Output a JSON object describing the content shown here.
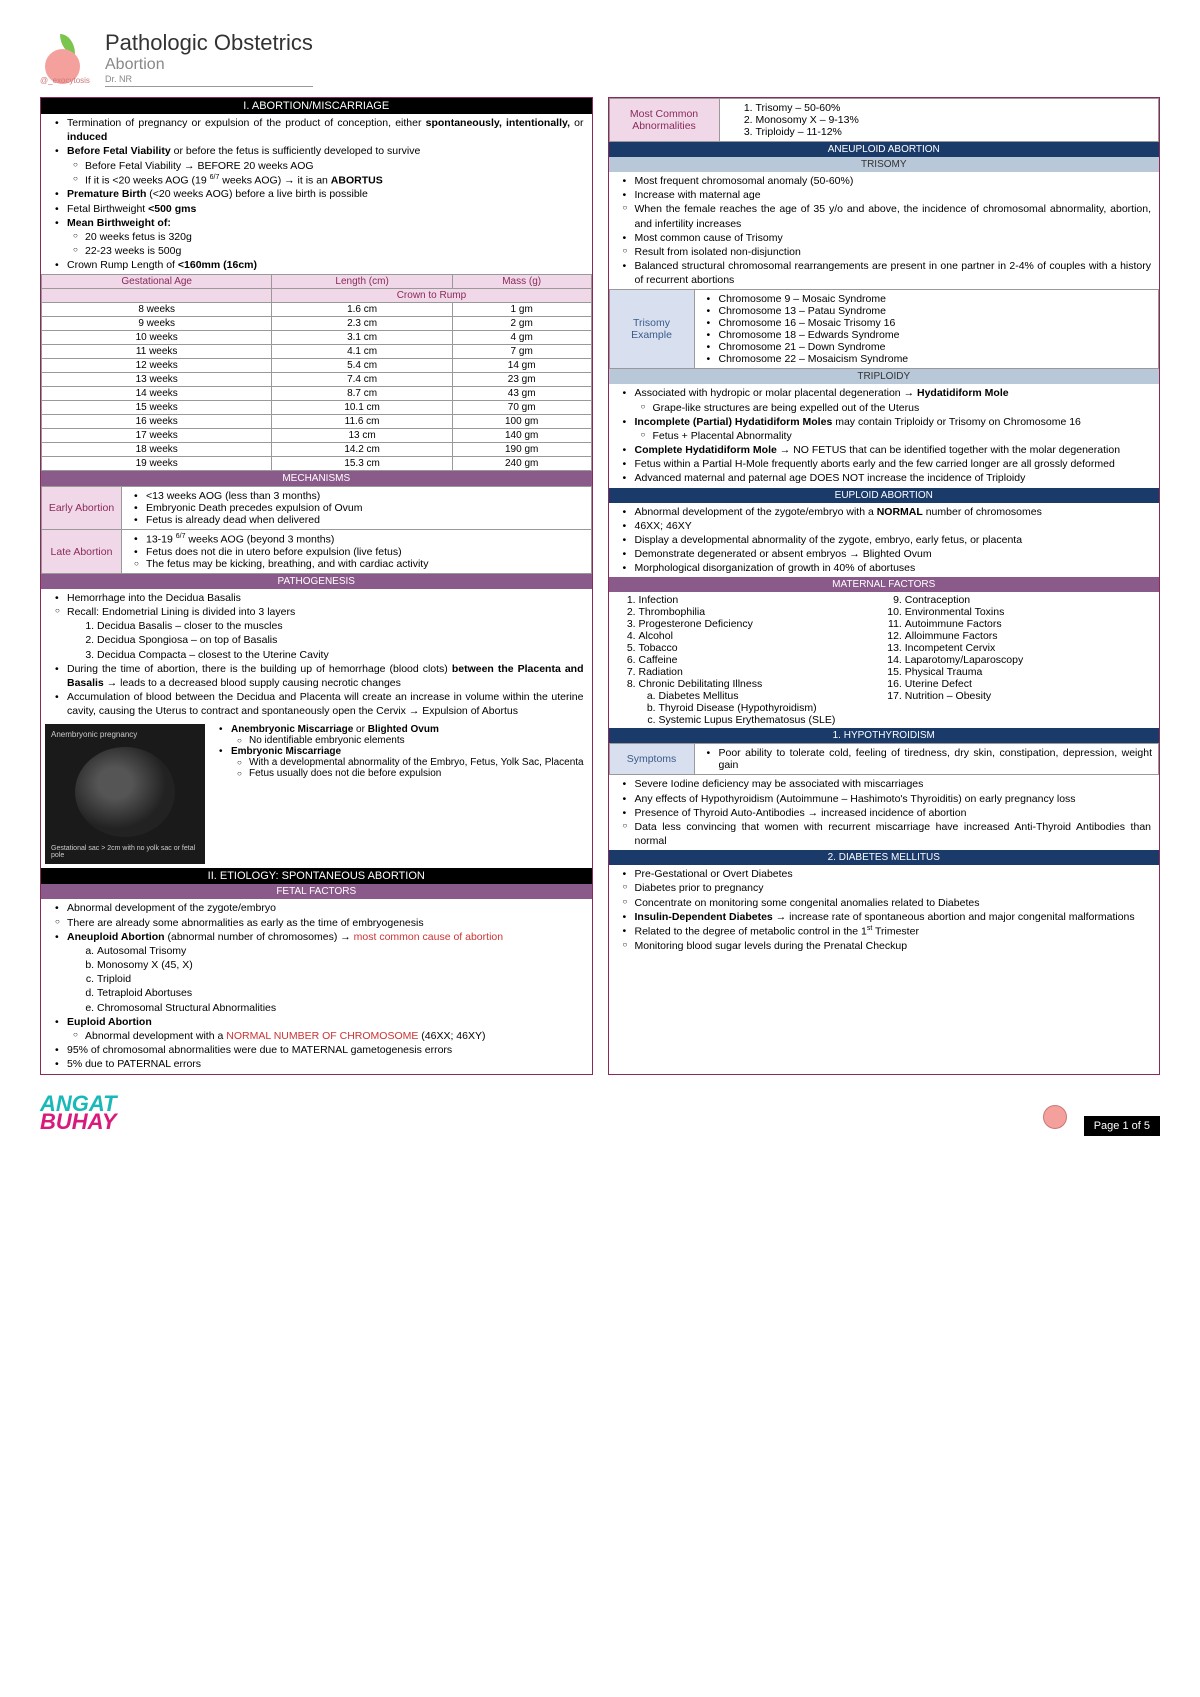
{
  "header": {
    "handle": "@_exocytosis",
    "title": "Pathologic Obstetrics",
    "subtitle": "Abortion",
    "doctor": "Dr. NR"
  },
  "sec1": {
    "title": "I. ABORTION/MISCARRIAGE",
    "b1": "Termination of pregnancy or expulsion of the product of conception, either ",
    "b1b": "spontaneously, intentionally,",
    "b1c": " or ",
    "b1d": "induced",
    "b2a": "Before Fetal Viability",
    "b2b": " or before the fetus is sufficiently developed to survive",
    "b2s1": "Before Fetal Viability → BEFORE 20 weeks AOG",
    "b2s2a": "If it is <20 weeks AOG (19 ",
    "b2s2sup": "6/7",
    "b2s2b": " weeks AOG) → it is an ",
    "b2s2c": "ABORTUS",
    "b3a": "Premature Birth",
    "b3b": " (<20 weeks AOG) before a live birth is possible",
    "b4a": "Fetal Birthweight ",
    "b4b": "<500 gms",
    "b5a": "Mean Birthweight of:",
    "b5s1": "20 weeks fetus is 320g",
    "b5s2": "22-23 weeks is 500g",
    "b6a": "Crown Rump Length of ",
    "b6b": "<160mm (16cm)"
  },
  "crl_table": {
    "h1": "Gestational Age",
    "h2": "Length (cm)",
    "h3": "Mass (g)",
    "sub": "Crown to Rump",
    "rows": [
      [
        "8 weeks",
        "1.6 cm",
        "1 gm"
      ],
      [
        "9 weeks",
        "2.3 cm",
        "2 gm"
      ],
      [
        "10 weeks",
        "3.1 cm",
        "4 gm"
      ],
      [
        "11 weeks",
        "4.1 cm",
        "7 gm"
      ],
      [
        "12 weeks",
        "5.4 cm",
        "14 gm"
      ],
      [
        "13 weeks",
        "7.4 cm",
        "23 gm"
      ],
      [
        "14 weeks",
        "8.7 cm",
        "43 gm"
      ],
      [
        "15 weeks",
        "10.1 cm",
        "70 gm"
      ],
      [
        "16 weeks",
        "11.6 cm",
        "100 gm"
      ],
      [
        "17 weeks",
        "13 cm",
        "140 gm"
      ],
      [
        "18 weeks",
        "14.2 cm",
        "190 gm"
      ],
      [
        "19 weeks",
        "15.3 cm",
        "240 gm"
      ]
    ]
  },
  "mechanisms": {
    "title": "MECHANISMS",
    "early_lbl": "Early Abortion",
    "e1": "<13 weeks AOG (less than 3 months)",
    "e2": "Embryonic Death precedes expulsion of Ovum",
    "e3": "Fetus is already dead when delivered",
    "late_lbl": "Late Abortion",
    "l1a": "13-19 ",
    "l1sup": "6/7",
    "l1b": " weeks AOG (beyond 3 months)",
    "l2": "Fetus does not die in utero before expulsion (live fetus)",
    "l2s": "The fetus may be kicking, breathing, and with cardiac activity"
  },
  "patho": {
    "title": "PATHOGENESIS",
    "p1": "Hemorrhage into the Decidua Basalis",
    "p1s": "Recall: Endometrial Lining is divided into 3 layers",
    "p1s1": "Decidua Basalis – closer to the muscles",
    "p1s2": "Decidua Spongiosa – on top of Basalis",
    "p1s3": "Decidua Compacta – closest to the Uterine Cavity",
    "p2a": "During the time of abortion, there is the building up of hemorrhage (blood clots) ",
    "p2b": "between the Placenta and Basalis",
    "p2c": " → leads to a decreased blood supply causing necrotic changes",
    "p3": "Accumulation of blood between the Decidua and Placenta will create an increase in volume within the uterine cavity, causing the Uterus to contract and spontaneously open the Cervix → Expulsion of Abortus",
    "img_t1": "Anembryonic pregnancy",
    "img_t2": "Gestational sac > 2cm with no yolk sac or fetal pole",
    "an1a": "Anembryonic Miscarriage",
    "an1b": " or ",
    "an1c": "Blighted Ovum",
    "an1s": "No identifiable embryonic elements",
    "an2": "Embryonic Miscarriage",
    "an2s1": "With a developmental abnormality of the Embryo, Fetus, Yolk Sac, Placenta",
    "an2s2": "Fetus usually does not die before expulsion"
  },
  "etio": {
    "title": "II. ETIOLOGY: SPONTANEOUS ABORTION",
    "fetal": "FETAL FACTORS",
    "f1": "Abnormal development of the zygote/embryo",
    "f1s": "There are already some abnormalities as early as the time of embryogenesis",
    "f2a": "Aneuploid Abortion",
    "f2b": " (abnormal number of chromosomes) → ",
    "f2c": "most common cause of abortion",
    "f2l": [
      "Autosomal Trisomy",
      "Monosomy X (45, X)",
      "Triploid",
      "Tetraploid Abortuses",
      "Chromosomal Structural Abnormalities"
    ],
    "f3": "Euploid Abortion",
    "f3sa": "Abnormal development with a ",
    "f3sb": "NORMAL NUMBER OF CHROMOSOME",
    "f3sc": " (46XX; 46XY)",
    "f4": "95% of chromosomal abnormalities were due to MATERNAL gametogenesis errors",
    "f5": "5% due to PATERNAL errors"
  },
  "abn": {
    "lbl": "Most Common Abnormalities",
    "i1": "Trisomy – 50-60%",
    "i2": "Monosomy X – 9-13%",
    "i3": "Triploidy – 11-12%"
  },
  "aneu": {
    "title": "ANEUPLOID ABORTION",
    "tri_title": "TRISOMY",
    "t1": "Most frequent chromosomal anomaly (50-60%)",
    "t2": "Increase with maternal age",
    "t2s": "When the female reaches the age of 35 y/o and above, the incidence of chromosomal abnormality, abortion, and infertility increases",
    "t3": "Most common cause of Trisomy",
    "t3s": "Result from isolated non-disjunction",
    "t4": "Balanced structural chromosomal rearrangements are present in one partner in 2-4% of couples with a history of recurrent abortions",
    "ex_lbl": "Trisomy Example",
    "ex": [
      "Chromosome 9 – Mosaic Syndrome",
      "Chromosome 13 – Patau Syndrome",
      "Chromosome 16 – Mosaic Trisomy 16",
      "Chromosome 18 – Edwards Syndrome",
      "Chromosome 21 – Down Syndrome",
      "Chromosome 22 – Mosaicism Syndrome"
    ],
    "trip_title": "TRIPLOIDY",
    "tp1a": "Associated with hydropic or molar placental degeneration → ",
    "tp1b": "Hydatidiform Mole",
    "tp1s": "Grape-like structures are being expelled out of the Uterus",
    "tp2a": "Incomplete (Partial) Hydatidiform Moles",
    "tp2b": " may contain Triploidy or Trisomy on Chromosome 16",
    "tp2s": "Fetus + Placental Abnormality",
    "tp3a": "Complete Hydatidiform Mole",
    "tp3b": " → NO FETUS that can be identified together with the molar degeneration",
    "tp4": "Fetus within a Partial H-Mole frequently aborts early and the few carried longer are all grossly deformed",
    "tp5": "Advanced maternal and paternal age DOES NOT increase the incidence of Triploidy"
  },
  "eup": {
    "title": "EUPLOID ABORTION",
    "e1a": "Abnormal development of the zygote/embryo with a ",
    "e1b": "NORMAL",
    "e1c": " number of chromosomes",
    "e2": "46XX; 46XY",
    "e3": "Display a developmental abnormality of the zygote, embryo, early fetus, or placenta",
    "e4": "Demonstrate degenerated or absent embryos → Blighted Ovum",
    "e5": "Morphological disorganization of growth in 40% of abortuses"
  },
  "mat": {
    "title": "MATERNAL FACTORS",
    "left": [
      "Infection",
      "Thrombophilia",
      "Progesterone Deficiency",
      "Alcohol",
      "Tobacco",
      "Caffeine",
      "Radiation",
      "Chronic Debilitating Illness"
    ],
    "sub": [
      "Diabetes Mellitus",
      "Thyroid Disease (Hypothyroidism)",
      "Systemic Lupus Erythematosus (SLE)"
    ],
    "right": [
      "Contraception",
      "Environmental Toxins",
      "Autoimmune Factors",
      "Alloimmune Factors",
      "Incompetent Cervix",
      "Laparotomy/Laparoscopy",
      "Physical Trauma",
      "Uterine Defect",
      "Nutrition – Obesity"
    ]
  },
  "hypo": {
    "title": "1. HYPOTHYROIDISM",
    "sym_lbl": "Symptoms",
    "sym": "Poor ability to tolerate cold, feeling of tiredness, dry skin, constipation, depression, weight gain",
    "h1": "Severe Iodine deficiency may be associated with miscarriages",
    "h2": "Any effects of Hypothyroidism (Autoimmune – Hashimoto's Thyroiditis) on early pregnancy loss",
    "h3": "Presence of Thyroid Auto-Antibodies → increased incidence of abortion",
    "h3s": "Data less convincing that women with recurrent miscarriage have increased Anti-Thyroid Antibodies than normal"
  },
  "dm": {
    "title": "2. DIABETES MELLITUS",
    "d1": "Pre-Gestational or Overt Diabetes",
    "d1s1": "Diabetes prior to pregnancy",
    "d1s2": "Concentrate on monitoring some congenital anomalies related to Diabetes",
    "d2a": "Insulin-Dependent Diabetes",
    "d2b": " → increase rate of spontaneous abortion and major congenital malformations",
    "d3a": "Related to the degree of metabolic control in the 1",
    "d3sup": "st",
    "d3b": " Trimester",
    "d3s": "Monitoring blood sugar levels during the Prenatal Checkup"
  },
  "footer": {
    "brand1": "ANGAT",
    "brand2": "BUHAY",
    "page": "Page 1 of 5"
  }
}
